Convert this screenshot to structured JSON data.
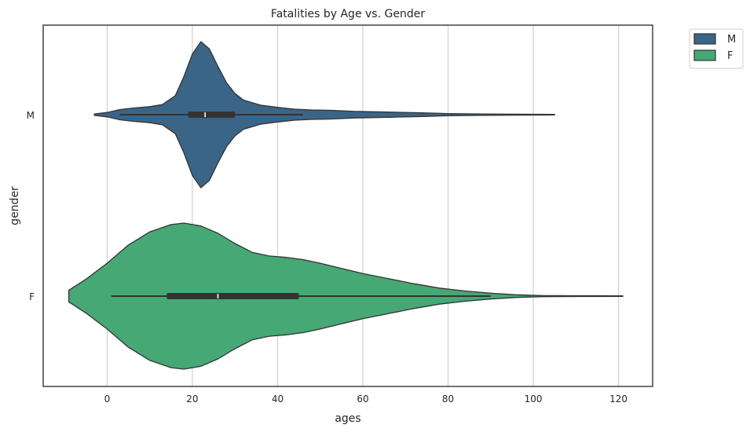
{
  "chart_data": {
    "type": "violin",
    "title": "Fatalities by Age vs. Gender",
    "xlabel": "ages",
    "ylabel": "gender",
    "xlim": [
      -15,
      128
    ],
    "xticks": [
      0,
      20,
      40,
      60,
      80,
      100,
      120
    ],
    "x_tick_labels": [
      "0",
      "20",
      "40",
      "60",
      "80",
      "100",
      "120"
    ],
    "categories": [
      "M",
      "F"
    ],
    "grid": "vertical",
    "legend": {
      "position": "outside-top-right",
      "entries": [
        "M",
        "F"
      ]
    },
    "series": [
      {
        "name": "M",
        "color": "#3b6587",
        "whisker": [
          3,
          46
        ],
        "quartiles": [
          19,
          30
        ],
        "median": 23,
        "extent": [
          -3,
          105
        ],
        "density": [
          [
            -3,
            0.01
          ],
          [
            0,
            0.03
          ],
          [
            3,
            0.07
          ],
          [
            6,
            0.09
          ],
          [
            10,
            0.11
          ],
          [
            13,
            0.14
          ],
          [
            16,
            0.26
          ],
          [
            18,
            0.52
          ],
          [
            20,
            0.83
          ],
          [
            22,
            1.0
          ],
          [
            24,
            0.9
          ],
          [
            26,
            0.66
          ],
          [
            28,
            0.44
          ],
          [
            30,
            0.29
          ],
          [
            32,
            0.2
          ],
          [
            36,
            0.13
          ],
          [
            40,
            0.1
          ],
          [
            44,
            0.075
          ],
          [
            48,
            0.065
          ],
          [
            52,
            0.06
          ],
          [
            58,
            0.045
          ],
          [
            66,
            0.035
          ],
          [
            74,
            0.025
          ],
          [
            80,
            0.015
          ],
          [
            88,
            0.01
          ],
          [
            96,
            0.006
          ],
          [
            105,
            0.004
          ]
        ]
      },
      {
        "name": "F",
        "color": "#46a874",
        "whisker": [
          1,
          90
        ],
        "quartiles": [
          14,
          45
        ],
        "median": 26,
        "extent": [
          -9,
          121
        ],
        "density": [
          [
            -9,
            0.08
          ],
          [
            -5,
            0.23
          ],
          [
            0,
            0.45
          ],
          [
            5,
            0.7
          ],
          [
            10,
            0.88
          ],
          [
            15,
            0.98
          ],
          [
            18,
            1.0
          ],
          [
            22,
            0.96
          ],
          [
            26,
            0.86
          ],
          [
            30,
            0.72
          ],
          [
            34,
            0.6
          ],
          [
            38,
            0.55
          ],
          [
            42,
            0.53
          ],
          [
            46,
            0.5
          ],
          [
            50,
            0.45
          ],
          [
            55,
            0.38
          ],
          [
            60,
            0.31
          ],
          [
            66,
            0.24
          ],
          [
            72,
            0.17
          ],
          [
            78,
            0.11
          ],
          [
            84,
            0.07
          ],
          [
            90,
            0.04
          ],
          [
            96,
            0.018
          ],
          [
            102,
            0.008
          ],
          [
            110,
            0.005
          ],
          [
            121,
            0.004
          ]
        ]
      }
    ]
  }
}
